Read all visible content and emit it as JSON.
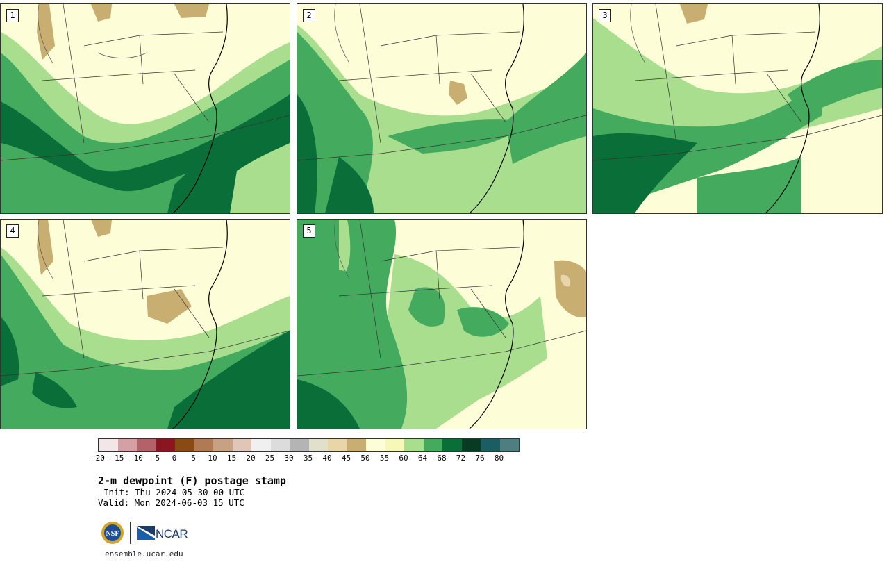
{
  "panels": [
    {
      "label": "1"
    },
    {
      "label": "2"
    },
    {
      "label": "3"
    },
    {
      "label": "4"
    },
    {
      "label": "5"
    }
  ],
  "colorbar": {
    "ticks": [
      "−20",
      "−15",
      "−10",
      "−5",
      "0",
      "5",
      "10",
      "15",
      "20",
      "25",
      "30",
      "35",
      "40",
      "45",
      "50",
      "55",
      "60",
      "64",
      "68",
      "72",
      "76",
      "80"
    ],
    "colors": [
      "#f2e6e6",
      "#d4a0a4",
      "#b26268",
      "#8c1620",
      "#8a4a14",
      "#b07a54",
      "#c8a084",
      "#e0c6b6",
      "#f0f0f0",
      "#dcdcdc",
      "#b4b4b4",
      "#e0e0cc",
      "#e8d6a8",
      "#c9ae72",
      "#fdfdd8",
      "#f6f8b8",
      "#a8de8e",
      "#44ab5e",
      "#0a6e38",
      "#073c22",
      "#1a5e64",
      "#4e7e80"
    ]
  },
  "title": "2-m dewpoint (F) postage stamp",
  "init": "Init: Thu 2024-05-30 00 UTC",
  "valid": "Valid: Mon 2024-06-03 15 UTC",
  "logos": {
    "nsf": "NSF",
    "ncar": "NCAR"
  },
  "site": "ensemble.ucar.edu"
}
